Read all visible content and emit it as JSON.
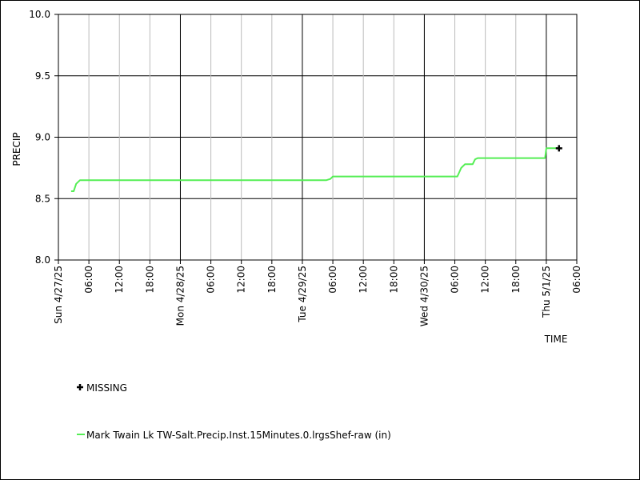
{
  "chart_data": {
    "type": "line",
    "xlabel": "TIME",
    "ylabel": "PRECIP",
    "ylim": [
      8.0,
      10.0
    ],
    "y_ticks": [
      "8.0",
      "8.5",
      "9.0",
      "9.5",
      "10.0"
    ],
    "x_range": [
      "2025-04-27T00:00",
      "2025-05-01T06:00"
    ],
    "x_tick_labels": [
      {
        "t": "2025-04-27T00:00",
        "label": "Sun 4/27/25",
        "major": true
      },
      {
        "t": "2025-04-27T06:00",
        "label": "06:00",
        "major": false
      },
      {
        "t": "2025-04-27T12:00",
        "label": "12:00",
        "major": false
      },
      {
        "t": "2025-04-27T18:00",
        "label": "18:00",
        "major": false
      },
      {
        "t": "2025-04-28T00:00",
        "label": "Mon 4/28/25",
        "major": true
      },
      {
        "t": "2025-04-28T06:00",
        "label": "06:00",
        "major": false
      },
      {
        "t": "2025-04-28T12:00",
        "label": "12:00",
        "major": false
      },
      {
        "t": "2025-04-28T18:00",
        "label": "18:00",
        "major": false
      },
      {
        "t": "2025-04-29T00:00",
        "label": "Tue 4/29/25",
        "major": true
      },
      {
        "t": "2025-04-29T06:00",
        "label": "06:00",
        "major": false
      },
      {
        "t": "2025-04-29T12:00",
        "label": "12:00",
        "major": false
      },
      {
        "t": "2025-04-29T18:00",
        "label": "18:00",
        "major": false
      },
      {
        "t": "2025-04-30T00:00",
        "label": "Wed 4/30/25",
        "major": true
      },
      {
        "t": "2025-04-30T06:00",
        "label": "06:00",
        "major": false
      },
      {
        "t": "2025-04-30T12:00",
        "label": "12:00",
        "major": false
      },
      {
        "t": "2025-04-30T18:00",
        "label": "18:00",
        "major": false
      },
      {
        "t": "2025-05-01T00:00",
        "label": "Thu 5/1/25",
        "major": true
      },
      {
        "t": "2025-05-01T06:00",
        "label": "06:00",
        "major": false
      }
    ],
    "grid": true,
    "series": [
      {
        "name": "Mark Twain Lk TW-Salt.Precip.Inst.15Minutes.0.lrgsShef-raw (in)",
        "color": "#55ee55",
        "points": [
          {
            "t": "2025-04-27T02:30",
            "y": 8.56
          },
          {
            "t": "2025-04-27T03:00",
            "y": 8.56
          },
          {
            "t": "2025-04-27T03:30",
            "y": 8.62
          },
          {
            "t": "2025-04-27T04:15",
            "y": 8.65
          },
          {
            "t": "2025-04-29T04:45",
            "y": 8.65
          },
          {
            "t": "2025-04-29T05:30",
            "y": 8.66
          },
          {
            "t": "2025-04-29T06:00",
            "y": 8.68
          },
          {
            "t": "2025-04-30T06:30",
            "y": 8.68
          },
          {
            "t": "2025-04-30T07:15",
            "y": 8.75
          },
          {
            "t": "2025-04-30T08:00",
            "y": 8.78
          },
          {
            "t": "2025-04-30T09:30",
            "y": 8.78
          },
          {
            "t": "2025-04-30T10:00",
            "y": 8.82
          },
          {
            "t": "2025-04-30T10:30",
            "y": 8.83
          },
          {
            "t": "2025-04-30T23:45",
            "y": 8.83
          },
          {
            "t": "2025-05-01T00:00",
            "y": 8.91
          },
          {
            "t": "2025-05-01T02:30",
            "y": 8.91
          }
        ]
      }
    ],
    "missing_points": [
      {
        "t": "2025-05-01T02:30",
        "y": 8.91
      }
    ],
    "legend": [
      {
        "marker": "cross",
        "label": "MISSING",
        "color": "#000000"
      },
      {
        "marker": "line",
        "label": "Mark Twain Lk TW-Salt.Precip.Inst.15Minutes.0.lrgsShef-raw (in)",
        "color": "#55ee55"
      }
    ],
    "legend_position": "bottom-left"
  }
}
